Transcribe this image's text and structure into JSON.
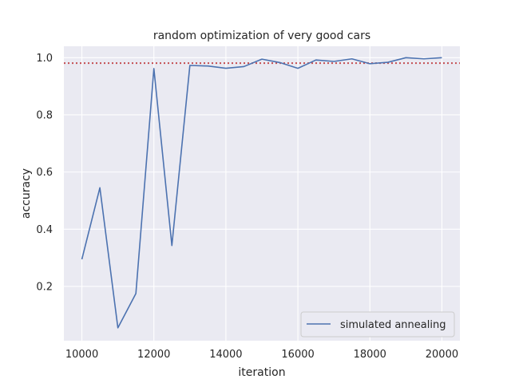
{
  "chart_data": {
    "type": "line",
    "title": "random optimization of very good cars",
    "xlabel": "iteration",
    "ylabel": "accuracy",
    "xlim": [
      9500,
      20500
    ],
    "ylim": [
      0.01,
      1.04
    ],
    "x_ticks": [
      10000,
      12000,
      14000,
      16000,
      18000,
      20000
    ],
    "x_tick_labels": [
      "10000",
      "12000",
      "14000",
      "16000",
      "18000",
      "20000"
    ],
    "y_ticks": [
      0.2,
      0.4,
      0.6,
      0.8,
      1.0
    ],
    "y_tick_labels": [
      "0.2",
      "0.4",
      "0.6",
      "0.8",
      "1.0"
    ],
    "grid": true,
    "legend_position": "bottom-right",
    "series": [
      {
        "name": "simulated annealing",
        "color": "#4c72b0",
        "x": [
          10000,
          10500,
          11000,
          11500,
          12000,
          12500,
          13000,
          13500,
          14000,
          14500,
          15000,
          15500,
          16000,
          16500,
          17000,
          17500,
          18000,
          18500,
          19000,
          19500,
          20000
        ],
        "y": [
          0.295,
          0.545,
          0.055,
          0.175,
          0.962,
          0.343,
          0.973,
          0.971,
          0.963,
          0.969,
          0.995,
          0.983,
          0.963,
          0.992,
          0.987,
          0.996,
          0.979,
          0.984,
          1.0,
          0.996,
          1.0
        ]
      }
    ],
    "reference_line": {
      "y": 0.981,
      "color": "#c44e52",
      "style": "dotted"
    }
  }
}
